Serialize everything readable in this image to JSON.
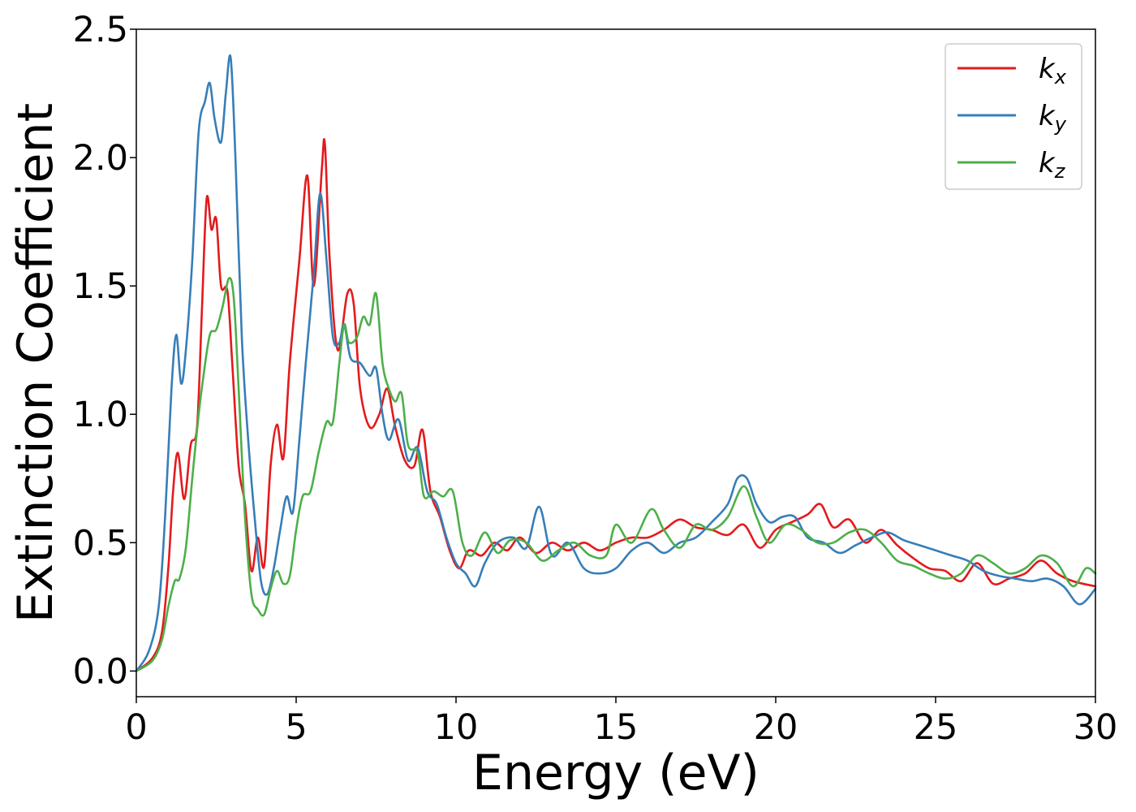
{
  "chart_data": {
    "type": "line",
    "xlabel": "Energy (eV)",
    "ylabel": "Extinction Coefficient",
    "xlim": [
      0,
      30
    ],
    "ylim": [
      -0.1,
      2.5
    ],
    "xticks": [
      0,
      5,
      10,
      15,
      20,
      25,
      30
    ],
    "xtick_labels": [
      "0",
      "5",
      "10",
      "15",
      "20",
      "25",
      "30"
    ],
    "yticks": [
      0.0,
      0.5,
      1.0,
      1.5,
      2.0,
      2.5
    ],
    "ytick_labels": [
      "0.0",
      "0.5",
      "1.0",
      "1.5",
      "2.0",
      "2.5"
    ],
    "grid": false,
    "legend_position": "top-right",
    "series": [
      {
        "name": "k",
        "subscript": "x",
        "color": "#e41a1c",
        "points": [
          [
            0,
            0.0
          ],
          [
            0.5,
            0.05
          ],
          [
            0.8,
            0.15
          ],
          [
            1.0,
            0.4
          ],
          [
            1.15,
            0.7
          ],
          [
            1.3,
            0.85
          ],
          [
            1.5,
            0.67
          ],
          [
            1.7,
            0.88
          ],
          [
            1.9,
            0.95
          ],
          [
            2.05,
            1.4
          ],
          [
            2.2,
            1.84
          ],
          [
            2.35,
            1.72
          ],
          [
            2.5,
            1.76
          ],
          [
            2.65,
            1.5
          ],
          [
            2.85,
            1.48
          ],
          [
            3.0,
            1.2
          ],
          [
            3.2,
            0.8
          ],
          [
            3.4,
            0.65
          ],
          [
            3.6,
            0.39
          ],
          [
            3.8,
            0.52
          ],
          [
            4.0,
            0.41
          ],
          [
            4.2,
            0.8
          ],
          [
            4.4,
            0.96
          ],
          [
            4.6,
            0.83
          ],
          [
            4.8,
            1.2
          ],
          [
            5.1,
            1.6
          ],
          [
            5.35,
            1.93
          ],
          [
            5.55,
            1.5
          ],
          [
            5.8,
            1.95
          ],
          [
            5.9,
            2.05
          ],
          [
            6.05,
            1.6
          ],
          [
            6.3,
            1.25
          ],
          [
            6.6,
            1.47
          ],
          [
            6.8,
            1.43
          ],
          [
            7.0,
            1.1
          ],
          [
            7.3,
            0.95
          ],
          [
            7.6,
            1.0
          ],
          [
            7.85,
            1.1
          ],
          [
            8.1,
            0.95
          ],
          [
            8.4,
            0.82
          ],
          [
            8.7,
            0.8
          ],
          [
            8.95,
            0.94
          ],
          [
            9.2,
            0.7
          ],
          [
            9.5,
            0.6
          ],
          [
            9.8,
            0.47
          ],
          [
            10.1,
            0.4
          ],
          [
            10.4,
            0.47
          ],
          [
            10.8,
            0.45
          ],
          [
            11.2,
            0.5
          ],
          [
            11.6,
            0.47
          ],
          [
            12.0,
            0.52
          ],
          [
            12.5,
            0.46
          ],
          [
            13.0,
            0.5
          ],
          [
            13.5,
            0.47
          ],
          [
            14.0,
            0.5
          ],
          [
            14.5,
            0.47
          ],
          [
            15.0,
            0.5
          ],
          [
            15.5,
            0.52
          ],
          [
            16.0,
            0.52
          ],
          [
            16.5,
            0.55
          ],
          [
            17.0,
            0.59
          ],
          [
            17.5,
            0.56
          ],
          [
            18.0,
            0.55
          ],
          [
            18.5,
            0.53
          ],
          [
            19.0,
            0.57
          ],
          [
            19.5,
            0.48
          ],
          [
            20.0,
            0.55
          ],
          [
            20.5,
            0.58
          ],
          [
            21.0,
            0.61
          ],
          [
            21.4,
            0.65
          ],
          [
            21.8,
            0.56
          ],
          [
            22.3,
            0.59
          ],
          [
            22.8,
            0.5
          ],
          [
            23.3,
            0.55
          ],
          [
            23.8,
            0.49
          ],
          [
            24.3,
            0.44
          ],
          [
            24.8,
            0.4
          ],
          [
            25.3,
            0.39
          ],
          [
            25.8,
            0.35
          ],
          [
            26.3,
            0.42
          ],
          [
            26.8,
            0.34
          ],
          [
            27.3,
            0.36
          ],
          [
            27.8,
            0.38
          ],
          [
            28.3,
            0.43
          ],
          [
            28.8,
            0.38
          ],
          [
            29.3,
            0.35
          ],
          [
            30.0,
            0.33
          ]
        ]
      },
      {
        "name": "k",
        "subscript": "y",
        "color": "#377eb8",
        "points": [
          [
            0,
            0.0
          ],
          [
            0.4,
            0.08
          ],
          [
            0.7,
            0.25
          ],
          [
            0.9,
            0.6
          ],
          [
            1.1,
            1.1
          ],
          [
            1.25,
            1.31
          ],
          [
            1.4,
            1.12
          ],
          [
            1.55,
            1.25
          ],
          [
            1.75,
            1.6
          ],
          [
            1.95,
            2.1
          ],
          [
            2.15,
            2.22
          ],
          [
            2.3,
            2.29
          ],
          [
            2.45,
            2.15
          ],
          [
            2.65,
            2.06
          ],
          [
            2.8,
            2.25
          ],
          [
            2.95,
            2.39
          ],
          [
            3.1,
            2.0
          ],
          [
            3.3,
            1.3
          ],
          [
            3.5,
            0.9
          ],
          [
            3.7,
            0.6
          ],
          [
            3.9,
            0.35
          ],
          [
            4.1,
            0.3
          ],
          [
            4.3,
            0.4
          ],
          [
            4.5,
            0.55
          ],
          [
            4.7,
            0.68
          ],
          [
            4.9,
            0.62
          ],
          [
            5.1,
            0.9
          ],
          [
            5.3,
            1.2
          ],
          [
            5.55,
            1.55
          ],
          [
            5.75,
            1.86
          ],
          [
            5.95,
            1.6
          ],
          [
            6.15,
            1.3
          ],
          [
            6.35,
            1.28
          ],
          [
            6.5,
            1.35
          ],
          [
            6.7,
            1.22
          ],
          [
            7.0,
            1.2
          ],
          [
            7.3,
            1.15
          ],
          [
            7.5,
            1.18
          ],
          [
            7.7,
            1.0
          ],
          [
            7.9,
            0.9
          ],
          [
            8.2,
            0.98
          ],
          [
            8.5,
            0.82
          ],
          [
            8.8,
            0.87
          ],
          [
            9.1,
            0.7
          ],
          [
            9.4,
            0.65
          ],
          [
            9.7,
            0.52
          ],
          [
            10.0,
            0.42
          ],
          [
            10.3,
            0.38
          ],
          [
            10.6,
            0.33
          ],
          [
            10.9,
            0.42
          ],
          [
            11.3,
            0.5
          ],
          [
            11.8,
            0.52
          ],
          [
            12.2,
            0.48
          ],
          [
            12.6,
            0.64
          ],
          [
            13.0,
            0.45
          ],
          [
            13.5,
            0.5
          ],
          [
            14.0,
            0.4
          ],
          [
            14.5,
            0.38
          ],
          [
            15.0,
            0.4
          ],
          [
            15.5,
            0.47
          ],
          [
            16.0,
            0.5
          ],
          [
            16.5,
            0.46
          ],
          [
            17.0,
            0.5
          ],
          [
            17.5,
            0.52
          ],
          [
            18.0,
            0.58
          ],
          [
            18.5,
            0.65
          ],
          [
            18.8,
            0.75
          ],
          [
            19.1,
            0.75
          ],
          [
            19.4,
            0.65
          ],
          [
            19.8,
            0.58
          ],
          [
            20.2,
            0.6
          ],
          [
            20.6,
            0.6
          ],
          [
            21.0,
            0.52
          ],
          [
            21.5,
            0.5
          ],
          [
            22.0,
            0.46
          ],
          [
            22.5,
            0.49
          ],
          [
            23.0,
            0.52
          ],
          [
            23.5,
            0.54
          ],
          [
            24.0,
            0.51
          ],
          [
            24.5,
            0.49
          ],
          [
            25.0,
            0.47
          ],
          [
            25.5,
            0.45
          ],
          [
            26.0,
            0.43
          ],
          [
            26.5,
            0.39
          ],
          [
            27.0,
            0.37
          ],
          [
            27.5,
            0.36
          ],
          [
            28.0,
            0.35
          ],
          [
            28.5,
            0.36
          ],
          [
            29.0,
            0.33
          ],
          [
            29.5,
            0.26
          ],
          [
            30.0,
            0.32
          ]
        ]
      },
      {
        "name": "k",
        "subscript": "z",
        "color": "#4daf4a",
        "points": [
          [
            0,
            0.0
          ],
          [
            0.5,
            0.04
          ],
          [
            0.8,
            0.12
          ],
          [
            1.0,
            0.25
          ],
          [
            1.2,
            0.35
          ],
          [
            1.35,
            0.36
          ],
          [
            1.55,
            0.48
          ],
          [
            1.75,
            0.75
          ],
          [
            1.95,
            1.0
          ],
          [
            2.1,
            1.15
          ],
          [
            2.3,
            1.31
          ],
          [
            2.5,
            1.33
          ],
          [
            2.7,
            1.42
          ],
          [
            2.9,
            1.53
          ],
          [
            3.05,
            1.45
          ],
          [
            3.2,
            1.1
          ],
          [
            3.4,
            0.6
          ],
          [
            3.6,
            0.3
          ],
          [
            3.8,
            0.24
          ],
          [
            4.0,
            0.22
          ],
          [
            4.2,
            0.32
          ],
          [
            4.4,
            0.39
          ],
          [
            4.6,
            0.34
          ],
          [
            4.8,
            0.37
          ],
          [
            5.0,
            0.55
          ],
          [
            5.2,
            0.68
          ],
          [
            5.45,
            0.7
          ],
          [
            5.7,
            0.85
          ],
          [
            5.95,
            0.97
          ],
          [
            6.15,
            0.97
          ],
          [
            6.35,
            1.2
          ],
          [
            6.5,
            1.35
          ],
          [
            6.65,
            1.28
          ],
          [
            6.9,
            1.3
          ],
          [
            7.1,
            1.38
          ],
          [
            7.3,
            1.35
          ],
          [
            7.5,
            1.47
          ],
          [
            7.7,
            1.2
          ],
          [
            7.9,
            1.1
          ],
          [
            8.1,
            1.05
          ],
          [
            8.3,
            1.08
          ],
          [
            8.5,
            0.88
          ],
          [
            8.8,
            0.85
          ],
          [
            9.0,
            0.68
          ],
          [
            9.3,
            0.7
          ],
          [
            9.6,
            0.68
          ],
          [
            9.9,
            0.7
          ],
          [
            10.2,
            0.5
          ],
          [
            10.5,
            0.45
          ],
          [
            10.9,
            0.54
          ],
          [
            11.3,
            0.46
          ],
          [
            11.7,
            0.51
          ],
          [
            12.2,
            0.5
          ],
          [
            12.7,
            0.43
          ],
          [
            13.2,
            0.47
          ],
          [
            13.7,
            0.5
          ],
          [
            14.2,
            0.45
          ],
          [
            14.7,
            0.45
          ],
          [
            15.0,
            0.57
          ],
          [
            15.5,
            0.5
          ],
          [
            16.1,
            0.63
          ],
          [
            16.5,
            0.55
          ],
          [
            17.0,
            0.48
          ],
          [
            17.5,
            0.57
          ],
          [
            18.0,
            0.55
          ],
          [
            18.5,
            0.6
          ],
          [
            19.0,
            0.72
          ],
          [
            19.4,
            0.6
          ],
          [
            19.8,
            0.5
          ],
          [
            20.3,
            0.57
          ],
          [
            20.8,
            0.55
          ],
          [
            21.3,
            0.5
          ],
          [
            21.8,
            0.5
          ],
          [
            22.3,
            0.54
          ],
          [
            22.8,
            0.55
          ],
          [
            23.3,
            0.5
          ],
          [
            23.8,
            0.43
          ],
          [
            24.3,
            0.41
          ],
          [
            24.8,
            0.38
          ],
          [
            25.3,
            0.36
          ],
          [
            25.8,
            0.38
          ],
          [
            26.3,
            0.45
          ],
          [
            26.8,
            0.42
          ],
          [
            27.3,
            0.38
          ],
          [
            27.8,
            0.4
          ],
          [
            28.3,
            0.45
          ],
          [
            28.8,
            0.42
          ],
          [
            29.3,
            0.33
          ],
          [
            29.7,
            0.4
          ],
          [
            30.0,
            0.38
          ]
        ]
      }
    ]
  }
}
